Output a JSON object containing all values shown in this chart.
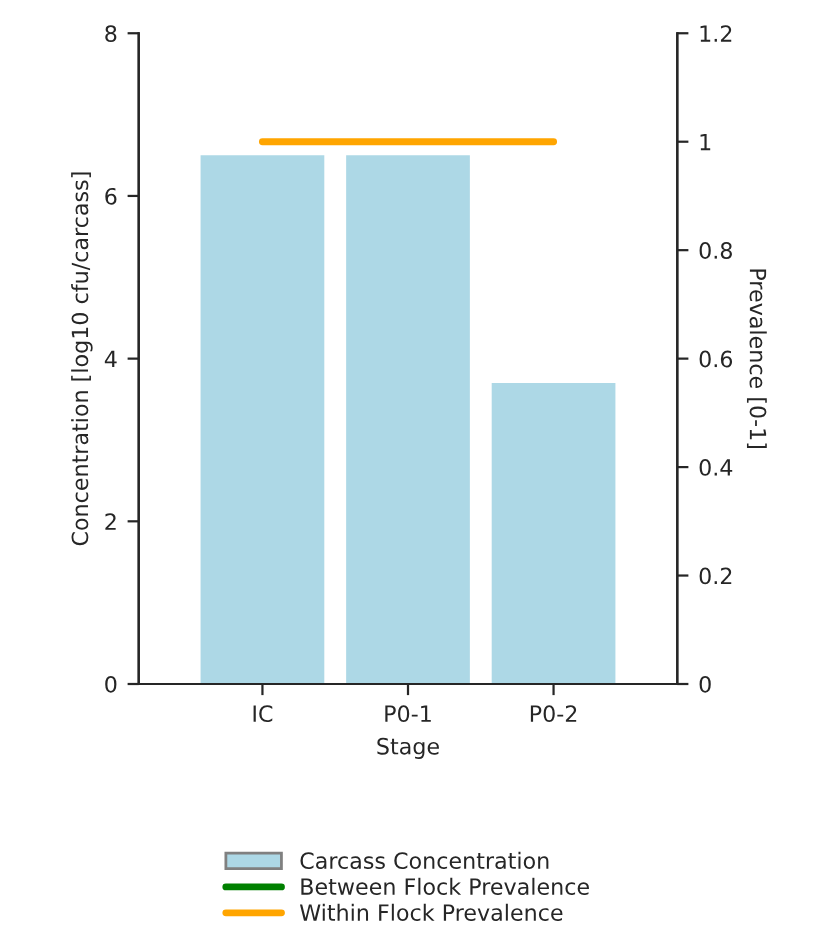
{
  "chart_data": {
    "type": "bar",
    "xlabel": "Stage",
    "ylabel": "Concentration [log10 cfu/carcass]",
    "y2label": "Prevalence [0-1]",
    "categories": [
      "IC",
      "P0-1",
      "P0-2"
    ],
    "series": [
      {
        "name": "Carcass Concentration",
        "color": "#add8e6",
        "values": [
          6.5,
          6.5,
          3.7
        ]
      },
      {
        "name": "Between Flock Prevalence",
        "type": "line",
        "axis": "y2",
        "color": "#008000",
        "values": [
          null,
          null,
          null
        ]
      },
      {
        "name": "Within Flock Prevalence",
        "type": "line",
        "axis": "y2",
        "color": "#ffa500",
        "values": [
          1,
          1,
          1
        ]
      }
    ],
    "ylim": [
      0,
      8
    ],
    "yticks": [
      0,
      2,
      4,
      6,
      8
    ],
    "y2lim": [
      0,
      1.2
    ],
    "y2ticks": [
      0,
      0.2,
      0.4,
      0.6,
      0.8,
      1,
      1.2
    ],
    "grid": false,
    "legend": "bottom"
  }
}
